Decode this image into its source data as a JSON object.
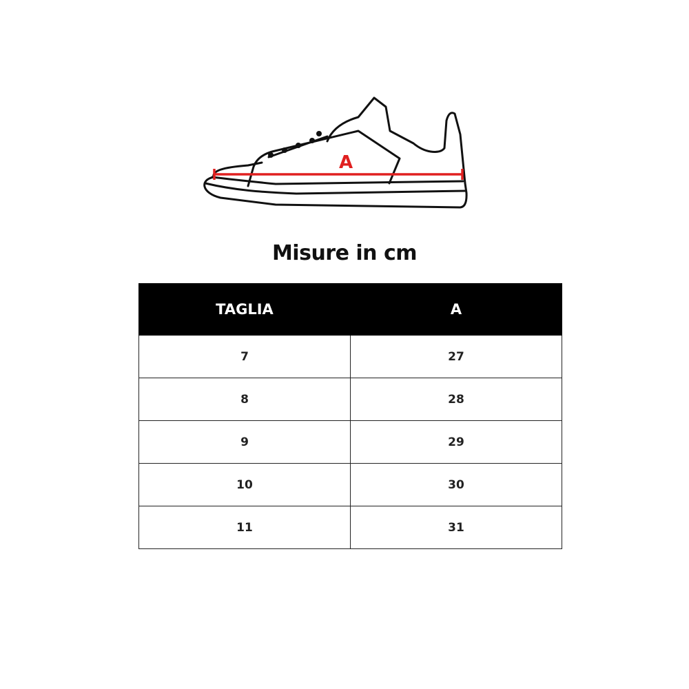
{
  "illustration": {
    "measure_label": "A",
    "measure_color": "#e02020"
  },
  "title": "Misure in cm",
  "table": {
    "headers": [
      "TAGLIA",
      "A"
    ],
    "rows": [
      [
        "7",
        "27"
      ],
      [
        "8",
        "28"
      ],
      [
        "9",
        "29"
      ],
      [
        "10",
        "30"
      ],
      [
        "11",
        "31"
      ]
    ]
  }
}
